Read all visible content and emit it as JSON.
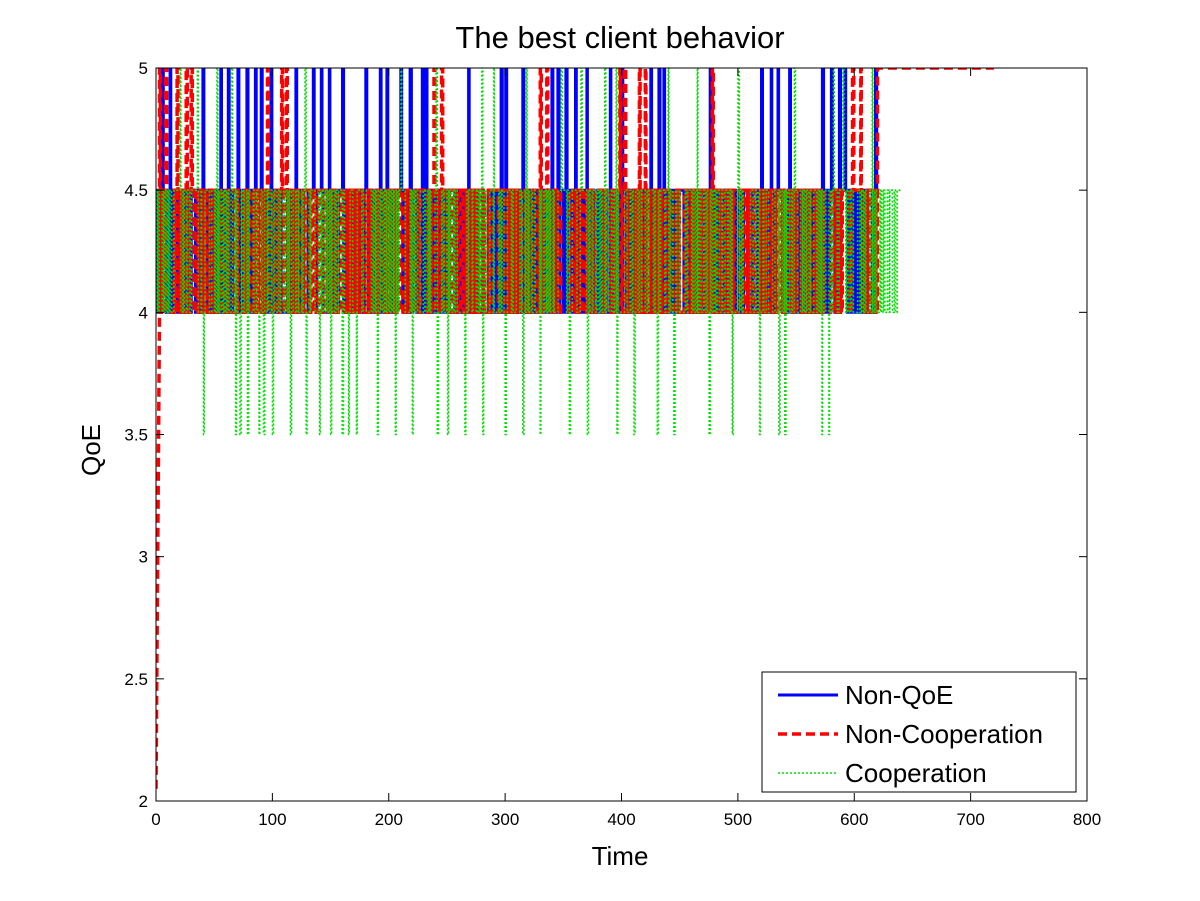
{
  "chart_data": {
    "type": "line",
    "title": "The best client behavior",
    "xlabel": "Time",
    "ylabel": "QoE",
    "xlim": [
      0,
      800
    ],
    "ylim": [
      2,
      5
    ],
    "xticks": [
      0,
      100,
      200,
      300,
      400,
      500,
      600,
      700,
      800
    ],
    "yticks": [
      2,
      2.5,
      3,
      3.5,
      4,
      4.5,
      5
    ],
    "xtick_labels": [
      "0",
      "100",
      "200",
      "300",
      "400",
      "500",
      "600",
      "700",
      "800"
    ],
    "ytick_labels": [
      "2",
      "2.5",
      "3",
      "3.5",
      "4",
      "4.5",
      "5"
    ],
    "grid": false,
    "legend_position": "bottom-right",
    "series": [
      {
        "name": "Non-QoE",
        "color": "#0000ff",
        "style": "solid",
        "x_range": [
          0,
          620
        ],
        "levels": [
          4,
          4.5,
          5
        ],
        "spikes_to_5_at": [
          5,
          12,
          40,
          55,
          62,
          70,
          78,
          85,
          90,
          98,
          120,
          135,
          142,
          148,
          160,
          180,
          192,
          198,
          210,
          218,
          228,
          232,
          268,
          296,
          300,
          315,
          340,
          345,
          352,
          360,
          370,
          390,
          400,
          425,
          432,
          436,
          476,
          520,
          528,
          534,
          544,
          572,
          580,
          587,
          592,
          618
        ]
      },
      {
        "name": "Non-Cooperation",
        "color": "#ff0000",
        "style": "dashed",
        "x_range": [
          0,
          720
        ],
        "initial_rise": {
          "x": [
            0,
            3
          ],
          "y": [
            2.05,
            4
          ]
        },
        "levels": [
          4,
          4.5,
          5
        ],
        "spikes_to_5_at": [
          2,
          8,
          18,
          25,
          30,
          95,
          108,
          112,
          238,
          245,
          330,
          335,
          398,
          402,
          415,
          420,
          478,
          598,
          605,
          625
        ],
        "final_value": {
          "x_range": [
            620,
            720
          ],
          "y": 5
        }
      },
      {
        "name": "Cooperation",
        "color": "#00e000",
        "style": "dotted",
        "x_range": [
          0,
          640
        ],
        "levels": [
          3.5,
          4,
          4.5,
          5
        ],
        "spikes_to_5_at": [
          20,
          35,
          52,
          65,
          128,
          210,
          240,
          280,
          290,
          318,
          348,
          365,
          385,
          395,
          440,
          465,
          500,
          548,
          582,
          590,
          615,
          640
        ],
        "dips_to_3_5_at": [
          40,
          68,
          72,
          78,
          88,
          92,
          100,
          115,
          128,
          140,
          150,
          160,
          165,
          172,
          190,
          205,
          220,
          240,
          250,
          265,
          280,
          300,
          315,
          330,
          355,
          370,
          395,
          410,
          430,
          445,
          475,
          495,
          518,
          535,
          540,
          572,
          578
        ]
      }
    ]
  }
}
